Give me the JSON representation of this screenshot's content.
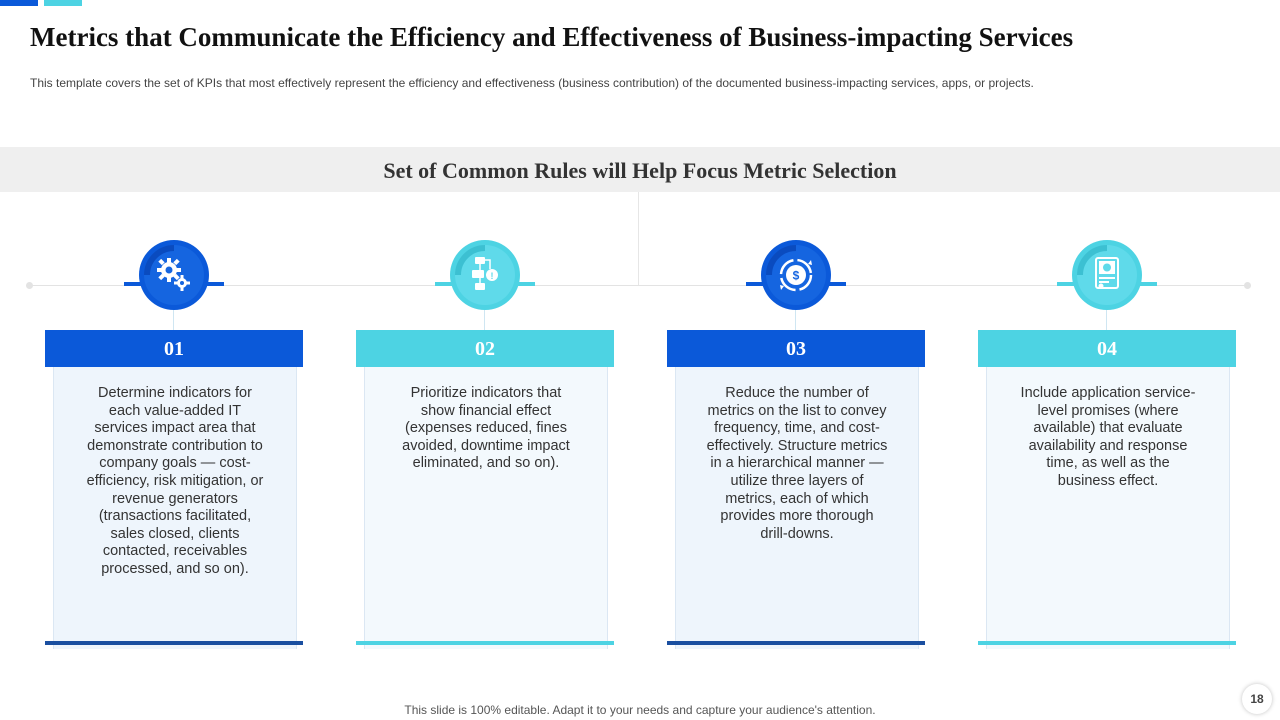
{
  "title": "Metrics that Communicate  the Efficiency and Effectiveness of Business-impacting Services",
  "subtitle": "This template covers  the set of KPIs that most effectively  represent the efficiency and effectiveness  (business contribution) of the documented business-impacting services, apps, or projects.",
  "section_title": "Set of Common  Rules will Help Focus Metric Selection",
  "colors": {
    "dark_blue": "#0b59d9",
    "light_cyan": "#4dd3e3"
  },
  "cards": [
    {
      "number": "01",
      "icon": "gears-icon",
      "text": "Determine indicators for each value-added IT services impact area that demonstrate contribution to company goals — cost-efficiency, risk mitigation, or revenue generators (transactions facilitated, sales closed, clients contacted, receivables processed, and so on)."
    },
    {
      "number": "02",
      "icon": "financial-flow-icon",
      "text": "Prioritize indicators that show financial effect (expenses reduced, fines avoided, downtime impact eliminated, and so on)."
    },
    {
      "number": "03",
      "icon": "dollar-cycle-icon",
      "text": "Reduce the number of metrics on the list to convey frequency, time, and cost-effectively. Structure metrics in a hierarchical manner — utilize three layers of metrics, each of which provides more thorough drill-downs."
    },
    {
      "number": "04",
      "icon": "service-document-icon",
      "text": "Include application service-level promises (where available) that evaluate availability  and response time, as well as the business effect."
    }
  ],
  "footer": "This slide is 100% editable. Adapt it to your needs and capture your audience's attention.",
  "page_number": "18"
}
